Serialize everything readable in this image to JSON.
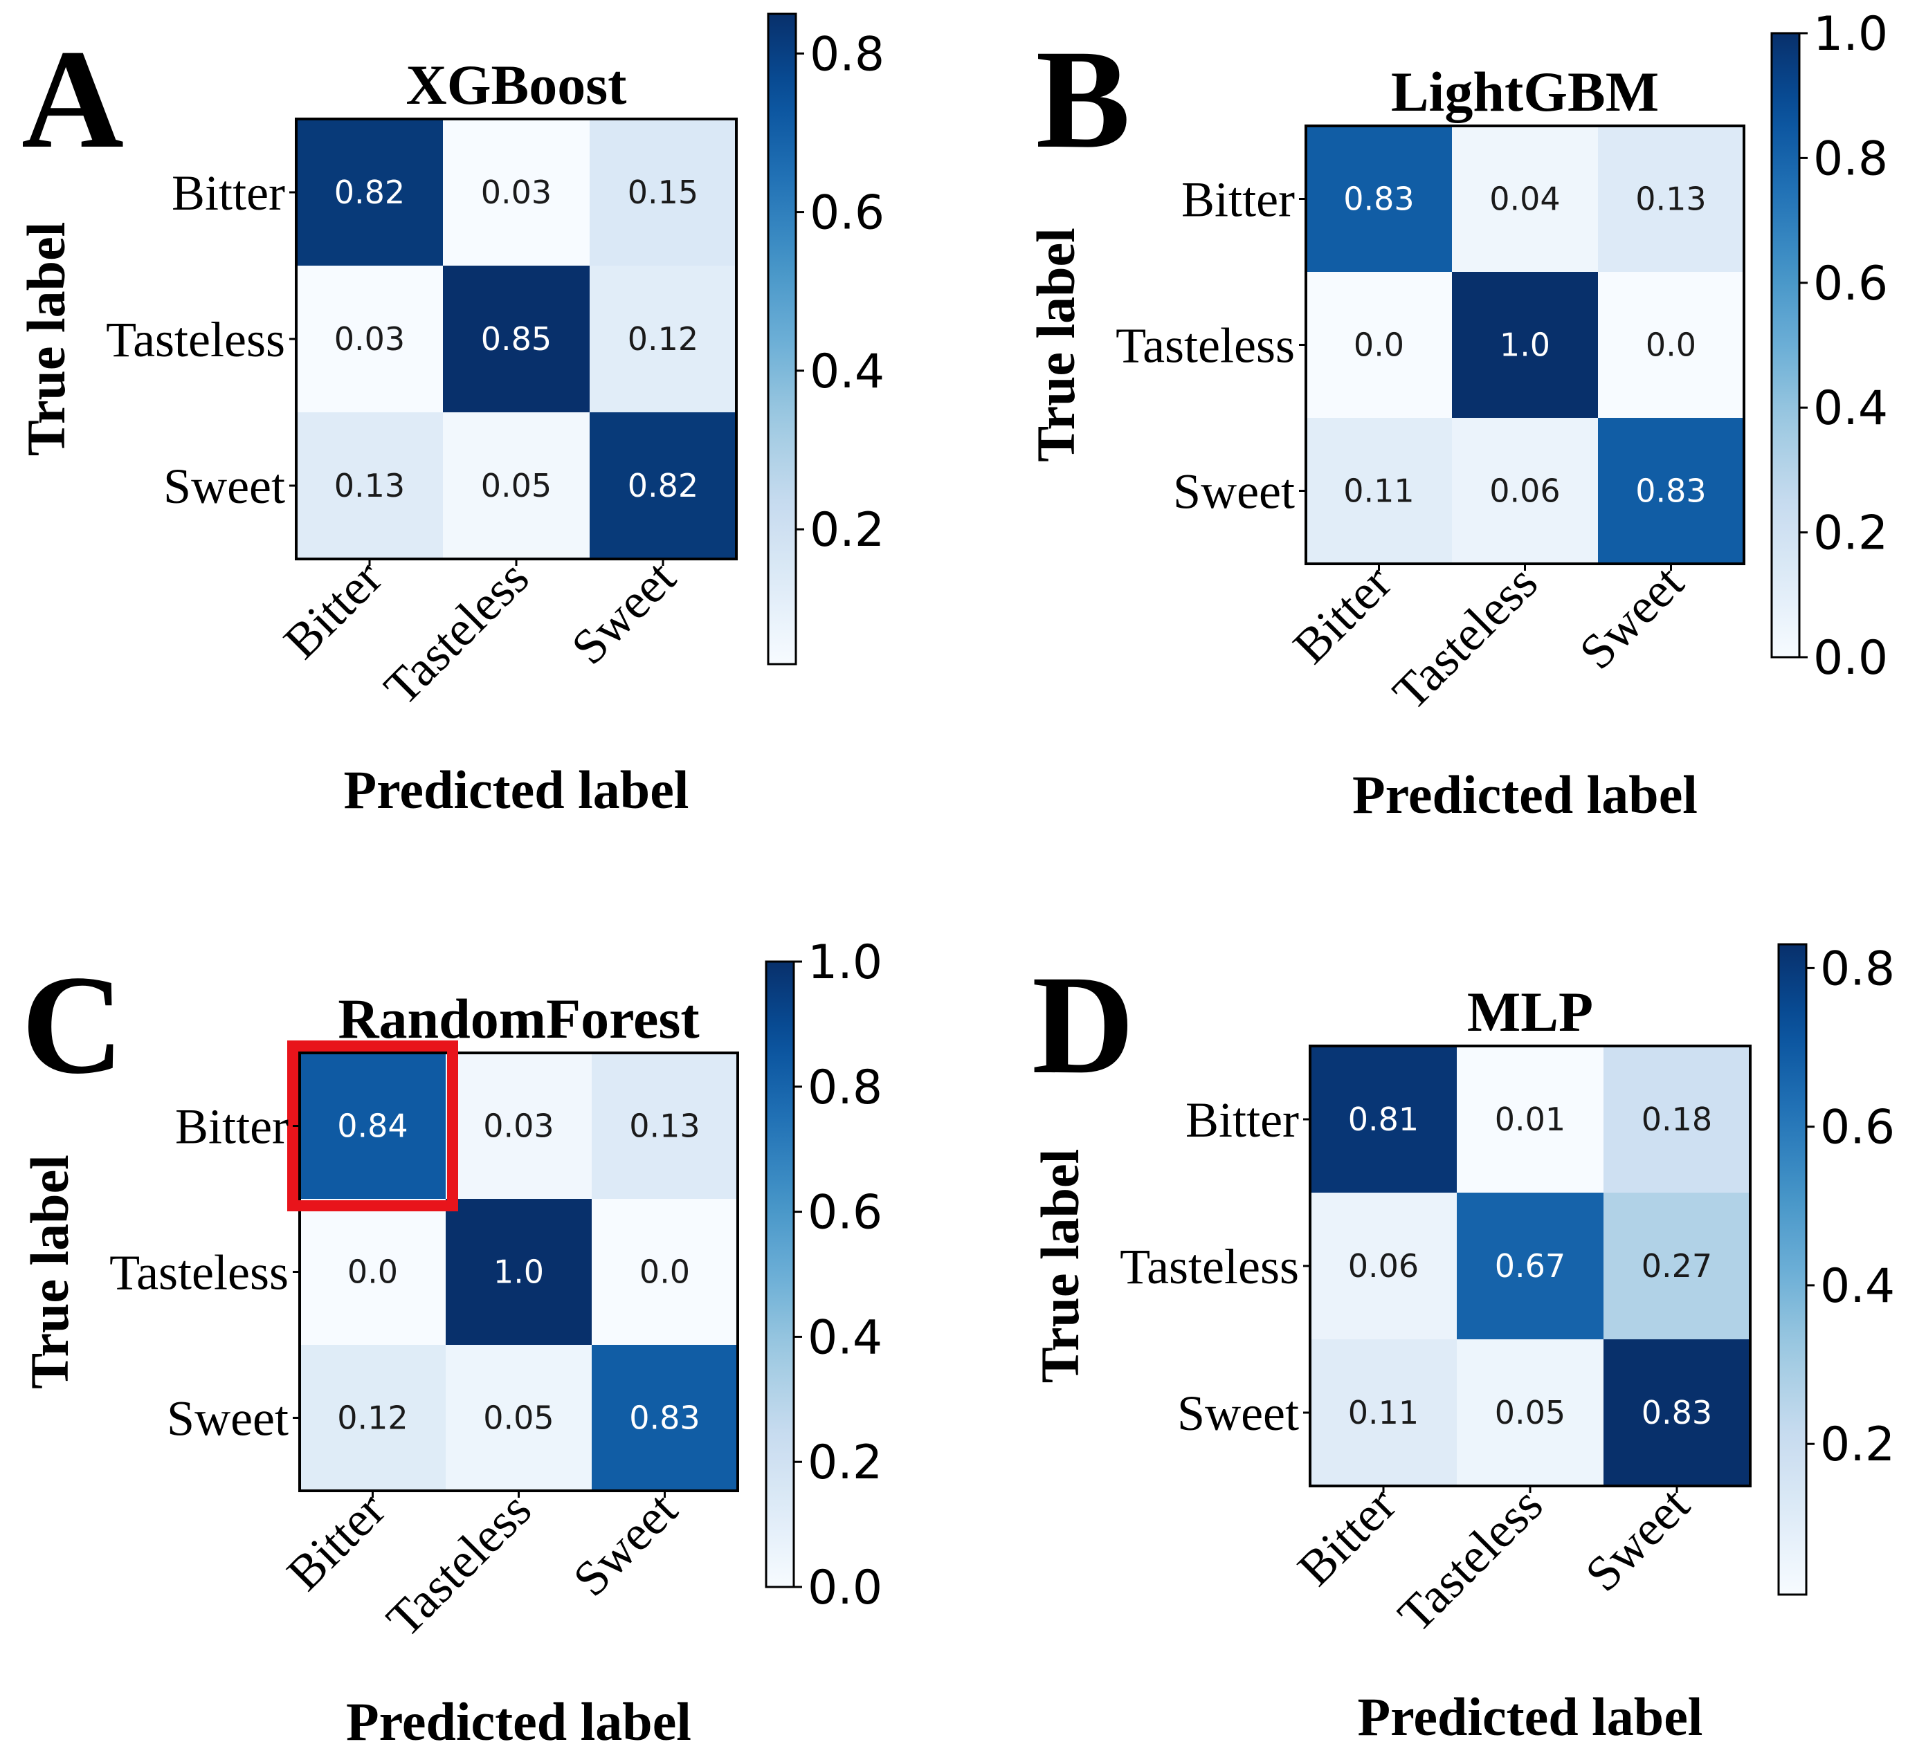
{
  "chart_data": [
    {
      "type": "heatmap",
      "panel_label": "A",
      "title": "XGBoost",
      "xlabel": "Predicted label",
      "ylabel": "True label",
      "x_categories": [
        "Bitter",
        "Tasteless",
        "Sweet"
      ],
      "y_categories": [
        "Bitter",
        "Tasteless",
        "Sweet"
      ],
      "values": [
        [
          0.82,
          0.03,
          0.15
        ],
        [
          0.03,
          0.85,
          0.12
        ],
        [
          0.13,
          0.05,
          0.82
        ]
      ],
      "cell_labels": [
        [
          "0.82",
          "0.03",
          "0.15"
        ],
        [
          "0.03",
          "0.85",
          "0.12"
        ],
        [
          "0.13",
          "0.05",
          "0.82"
        ]
      ],
      "colorbar": {
        "min": 0.03,
        "max": 0.85,
        "ticks": [
          0.2,
          0.4,
          0.6,
          0.8
        ],
        "tick_labels": [
          "0.2",
          "0.4",
          "0.6",
          "0.8"
        ],
        "colormap": "Blues"
      }
    },
    {
      "type": "heatmap",
      "panel_label": "B",
      "title": "LightGBM",
      "xlabel": "Predicted label",
      "ylabel": "True label",
      "x_categories": [
        "Bitter",
        "Tasteless",
        "Sweet"
      ],
      "y_categories": [
        "Bitter",
        "Tasteless",
        "Sweet"
      ],
      "values": [
        [
          0.83,
          0.04,
          0.13
        ],
        [
          0.0,
          1.0,
          0.0
        ],
        [
          0.11,
          0.06,
          0.83
        ]
      ],
      "cell_labels": [
        [
          "0.83",
          "0.04",
          "0.13"
        ],
        [
          "0.0",
          "1.0",
          "0.0"
        ],
        [
          "0.11",
          "0.06",
          "0.83"
        ]
      ],
      "colorbar": {
        "min": 0.0,
        "max": 1.0,
        "ticks": [
          0.0,
          0.2,
          0.4,
          0.6,
          0.8,
          1.0
        ],
        "tick_labels": [
          "0.0",
          "0.2",
          "0.4",
          "0.6",
          "0.8",
          "1.0"
        ],
        "colormap": "Blues"
      }
    },
    {
      "type": "heatmap",
      "panel_label": "C",
      "title": "RandomForest",
      "xlabel": "Predicted label",
      "ylabel": "True label",
      "x_categories": [
        "Bitter",
        "Tasteless",
        "Sweet"
      ],
      "y_categories": [
        "Bitter",
        "Tasteless",
        "Sweet"
      ],
      "values": [
        [
          0.84,
          0.03,
          0.13
        ],
        [
          0.0,
          1.0,
          0.0
        ],
        [
          0.12,
          0.05,
          0.83
        ]
      ],
      "cell_labels": [
        [
          "0.84",
          "0.03",
          "0.13"
        ],
        [
          "0.0",
          "1.0",
          "0.0"
        ],
        [
          "0.12",
          "0.05",
          "0.83"
        ]
      ],
      "highlighted_cell": [
        0,
        0
      ],
      "highlight_color": "#e8141b",
      "colorbar": {
        "min": 0.0,
        "max": 1.0,
        "ticks": [
          0.0,
          0.2,
          0.4,
          0.6,
          0.8,
          1.0
        ],
        "tick_labels": [
          "0.0",
          "0.2",
          "0.4",
          "0.6",
          "0.8",
          "1.0"
        ],
        "colormap": "Blues"
      }
    },
    {
      "type": "heatmap",
      "panel_label": "D",
      "title": "MLP",
      "xlabel": "Predicted label",
      "ylabel": "True label",
      "x_categories": [
        "Bitter",
        "Tasteless",
        "Sweet"
      ],
      "y_categories": [
        "Bitter",
        "Tasteless",
        "Sweet"
      ],
      "values": [
        [
          0.81,
          0.01,
          0.18
        ],
        [
          0.06,
          0.67,
          0.27
        ],
        [
          0.11,
          0.05,
          0.83
        ]
      ],
      "cell_labels": [
        [
          "0.81",
          "0.01",
          "0.18"
        ],
        [
          "0.06",
          "0.67",
          "0.27"
        ],
        [
          "0.11",
          "0.05",
          "0.83"
        ]
      ],
      "colorbar": {
        "min": 0.01,
        "max": 0.83,
        "ticks": [
          0.2,
          0.4,
          0.6,
          0.8
        ],
        "tick_labels": [
          "0.2",
          "0.4",
          "0.6",
          "0.8"
        ],
        "colormap": "Blues"
      }
    }
  ]
}
